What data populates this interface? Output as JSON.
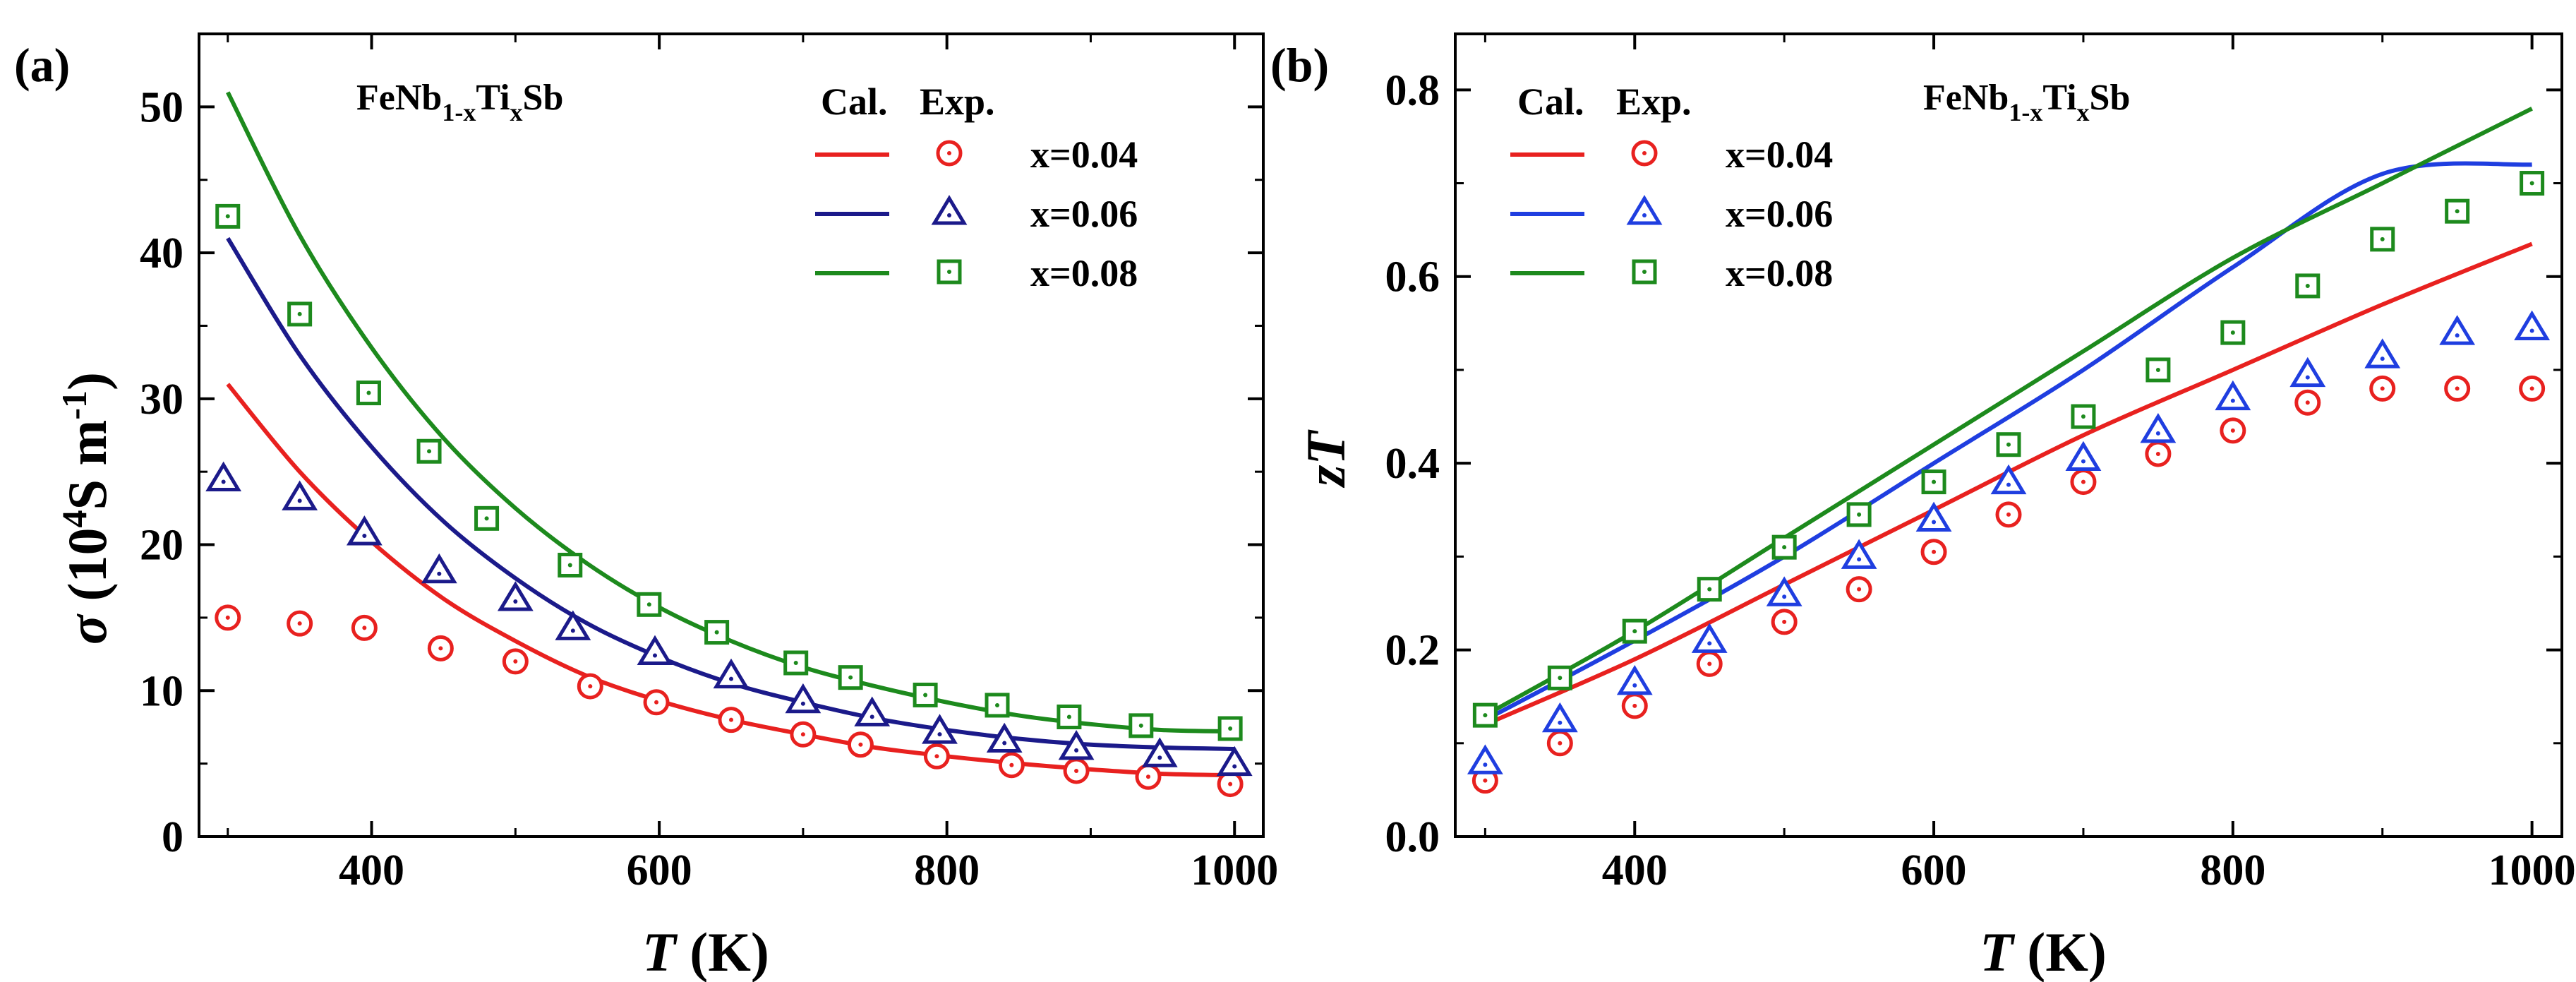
{
  "chart_data": [
    {
      "type": "line+scatter",
      "panel_label": "(a)",
      "title": "FeNb",
      "title_sub1": "1-x",
      "title_mid": "Ti",
      "title_sub2": "x",
      "title_end": "Sb",
      "xlabel_italic": "T",
      "xlabel_unit": " (K)",
      "ylabel_symbol": "σ",
      "ylabel_a": " (10",
      "ylabel_sup1": "4",
      "ylabel_b": "S m",
      "ylabel_sup2": "-1",
      "ylabel_c": ")",
      "xlim": [
        280,
        1020
      ],
      "ylim": [
        0,
        55
      ],
      "xticks": [
        "400",
        "600",
        "800",
        "1000"
      ],
      "xtick_values": [
        400,
        600,
        800,
        1000
      ],
      "yticks": [
        "0",
        "10",
        "20",
        "30",
        "40",
        "50"
      ],
      "ytick_values": [
        0,
        10,
        20,
        30,
        40,
        50
      ],
      "legend_headers": [
        "Cal.",
        "Exp."
      ],
      "legend_position": "top-right",
      "series": [
        {
          "name": "x=0.04",
          "color": "#e8211f",
          "marker": "circle",
          "calc": {
            "x": [
              300,
              350,
              400,
              450,
              500,
              550,
              600,
              650,
              700,
              750,
              800,
              850,
              900,
              950,
              1000
            ],
            "y": [
              31.0,
              25.0,
              20.2,
              16.3,
              13.4,
              11.0,
              9.3,
              8.0,
              7.0,
              6.1,
              5.5,
              5.0,
              4.6,
              4.3,
              4.2
            ]
          },
          "exp": {
            "x": [
              300,
              350,
              395,
              448,
              500,
              552,
              598,
              650,
              700,
              740,
              793,
              845,
              890,
              940,
              997
            ],
            "y": [
              15.0,
              14.6,
              14.3,
              12.9,
              12.0,
              10.3,
              9.2,
              8.0,
              7.0,
              6.3,
              5.5,
              4.9,
              4.5,
              4.1,
              3.6
            ]
          }
        },
        {
          "name": "x=0.06",
          "color": "#1b1a8a",
          "marker": "triangle",
          "calc": {
            "x": [
              300,
              350,
              400,
              450,
              500,
              550,
              600,
              650,
              700,
              750,
              800,
              850,
              900,
              950,
              1000
            ],
            "y": [
              41.0,
              33.0,
              26.7,
              21.6,
              17.7,
              14.6,
              12.3,
              10.5,
              9.2,
              8.1,
              7.3,
              6.7,
              6.3,
              6.1,
              6.0
            ]
          },
          "exp": {
            "x": [
              297,
              350,
              395,
              447,
              500,
              540,
              597,
              650,
              700,
              748,
              795,
              840,
              890,
              948,
              1000
            ],
            "y": [
              24.5,
              23.2,
              20.8,
              18.2,
              16.3,
              14.3,
              12.6,
              11.0,
              9.3,
              8.4,
              7.2,
              6.6,
              6.1,
              5.6,
              5.0
            ]
          }
        },
        {
          "name": "x=0.08",
          "color": "#1d8a1d",
          "marker": "square",
          "calc": {
            "x": [
              300,
              350,
              400,
              450,
              500,
              550,
              600,
              650,
              700,
              750,
              800,
              850,
              900,
              950,
              1000
            ],
            "y": [
              51.0,
              41.2,
              33.5,
              27.3,
              22.5,
              18.7,
              15.7,
              13.4,
              11.6,
              10.3,
              9.2,
              8.3,
              7.7,
              7.3,
              7.2
            ]
          },
          "exp": {
            "x": [
              300,
              350,
              398,
              440,
              480,
              538,
              593,
              640,
              695,
              733,
              785,
              835,
              885,
              935,
              997
            ],
            "y": [
              42.5,
              35.8,
              30.4,
              26.4,
              21.8,
              18.6,
              15.9,
              14.0,
              11.9,
              10.9,
              9.7,
              9.0,
              8.2,
              7.6,
              7.4
            ]
          }
        }
      ]
    },
    {
      "type": "line+scatter",
      "panel_label": "(b)",
      "title": "FeNb",
      "title_sub1": "1-x",
      "title_mid": "Ti",
      "title_sub2": "x",
      "title_end": "Sb",
      "xlabel_italic": "T",
      "xlabel_unit": " (K)",
      "ylabel_italic": "zT",
      "xlim": [
        280,
        1020
      ],
      "ylim": [
        0.0,
        0.86
      ],
      "xticks": [
        "400",
        "600",
        "800",
        "1000"
      ],
      "xtick_values": [
        400,
        600,
        800,
        1000
      ],
      "yticks": [
        "0.0",
        "0.2",
        "0.4",
        "0.6",
        "0.8"
      ],
      "ytick_values": [
        0.0,
        0.2,
        0.4,
        0.6,
        0.8
      ],
      "legend_headers": [
        "Cal.",
        "Exp."
      ],
      "legend_position": "top-left",
      "series": [
        {
          "name": "x=0.04",
          "color": "#e8211f",
          "marker": "circle",
          "calc": {
            "x": [
              300,
              400,
              500,
              600,
              700,
              800,
              900,
              1000
            ],
            "y": [
              0.12,
              0.19,
              0.27,
              0.35,
              0.43,
              0.5,
              0.57,
              0.635
            ]
          },
          "exp": {
            "x": [
              300,
              350,
              400,
              450,
              500,
              550,
              600,
              650,
              700,
              750,
              800,
              850,
              900,
              950,
              1000
            ],
            "y": [
              0.06,
              0.1,
              0.14,
              0.185,
              0.23,
              0.265,
              0.305,
              0.345,
              0.38,
              0.41,
              0.435,
              0.465,
              0.48,
              0.48,
              0.48
            ]
          }
        },
        {
          "name": "x=0.06",
          "color": "#1f3ee0",
          "marker": "triangle",
          "calc": {
            "x": [
              300,
              400,
              500,
              600,
              700,
              800,
              900,
              1000
            ],
            "y": [
              0.125,
              0.21,
              0.3,
              0.4,
              0.5,
              0.61,
              0.71,
              0.72
            ]
          },
          "exp": {
            "x": [
              300,
              350,
              400,
              450,
              500,
              550,
              600,
              650,
              700,
              750,
              800,
              850,
              900,
              950,
              1000
            ],
            "y": [
              0.08,
              0.125,
              0.165,
              0.21,
              0.26,
              0.3,
              0.34,
              0.38,
              0.405,
              0.435,
              0.47,
              0.495,
              0.515,
              0.54,
              0.545
            ]
          }
        },
        {
          "name": "x=0.08",
          "color": "#1d8a1d",
          "marker": "square",
          "calc": {
            "x": [
              300,
              400,
              500,
              600,
              700,
              800,
              900,
              1000
            ],
            "y": [
              0.13,
              0.22,
              0.32,
              0.42,
              0.52,
              0.62,
              0.7,
              0.78
            ]
          },
          "exp": {
            "x": [
              300,
              350,
              400,
              450,
              500,
              550,
              600,
              650,
              700,
              750,
              800,
              850,
              900,
              950,
              1000
            ],
            "y": [
              0.13,
              0.17,
              0.22,
              0.265,
              0.31,
              0.345,
              0.38,
              0.42,
              0.45,
              0.5,
              0.54,
              0.59,
              0.64,
              0.67,
              0.7
            ]
          }
        }
      ]
    }
  ]
}
